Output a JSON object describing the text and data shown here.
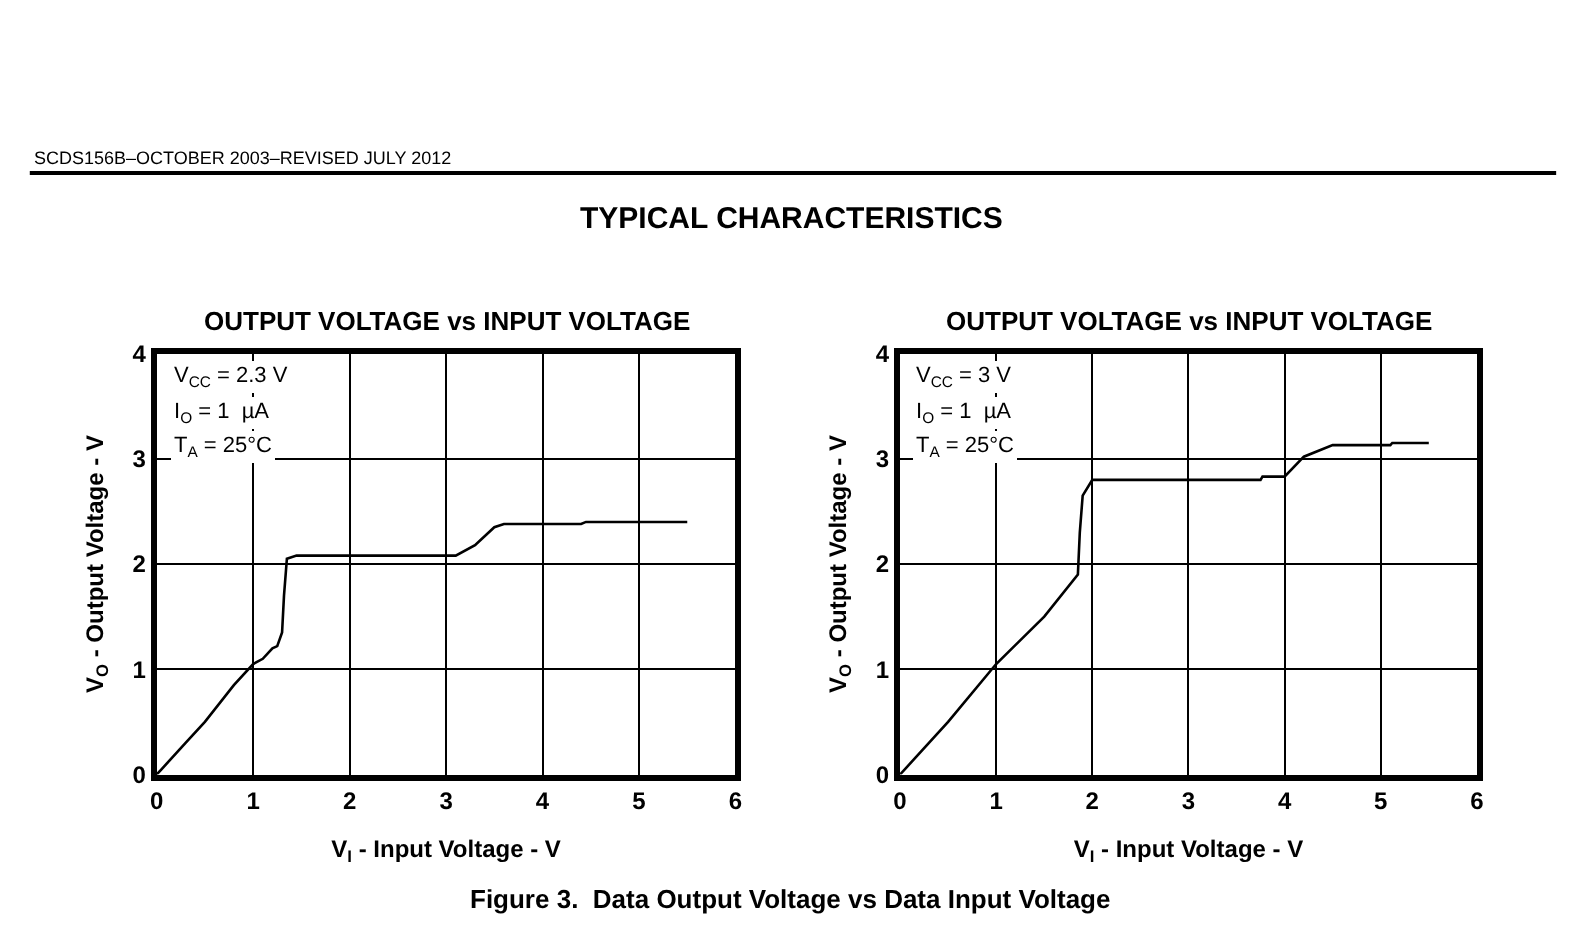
{
  "chart_data": [
    {
      "type": "line",
      "title": "OUTPUT VOLTAGE vs INPUT VOLTAGE",
      "xlabel": "V$_{I}$ - Input Voltage - V",
      "ylabel": "V$_{O}$ - Output Voltage - V",
      "x": [
        0,
        0.05,
        0.3,
        0.5,
        0.8,
        1.0,
        1.1,
        1.2,
        1.25,
        1.3,
        1.32,
        1.35,
        1.45,
        3.1,
        3.3,
        3.5,
        3.6,
        4.4,
        4.45,
        5.5
      ],
      "values": [
        0,
        0.05,
        0.3,
        0.5,
        0.85,
        1.05,
        1.1,
        1.2,
        1.22,
        1.35,
        1.7,
        2.05,
        2.08,
        2.08,
        2.18,
        2.35,
        2.38,
        2.38,
        2.4,
        2.4
      ],
      "color": "#000000",
      "xlim": [
        0,
        6
      ],
      "ylim": [
        0,
        4
      ],
      "xticks": [
        0,
        1,
        2,
        3,
        4,
        5,
        6
      ],
      "yticks": [
        0,
        1,
        2,
        3,
        4
      ],
      "grid": true,
      "annotations": [
        "V$_{CC}$ = 2.3 V",
        "I$_{O}$ = 1  µA",
        "T$_{A}$ = 25°C",
        "SCDS156B–OCTOBER 2003–REVISED JULY 2012",
        "TYPICAL CHARACTERISTICS",
        "Figure 3.  Data Output Voltage vs Data Input Voltage"
      ]
    },
    {
      "type": "line",
      "title": "OUTPUT VOLTAGE vs INPUT VOLTAGE",
      "xlabel": "V$_{I}$ - Input Voltage - V",
      "ylabel": "V$_{O}$ - Output Voltage - V",
      "x": [
        0,
        0.5,
        1.0,
        1.5,
        1.85,
        1.87,
        1.9,
        2.0,
        3.75,
        3.77,
        4.0,
        4.2,
        4.5,
        5.1,
        5.12,
        5.5
      ],
      "values": [
        0,
        0.5,
        1.05,
        1.5,
        1.9,
        2.3,
        2.65,
        2.8,
        2.8,
        2.83,
        2.83,
        3.02,
        3.13,
        3.13,
        3.15,
        3.15
      ],
      "color": "#000000",
      "xlim": [
        0,
        6
      ],
      "ylim": [
        0,
        4
      ],
      "xticks": [
        0,
        1,
        2,
        3,
        4,
        5,
        6
      ],
      "yticks": [
        0,
        1,
        2,
        3,
        4
      ],
      "grid": true,
      "annotations": [
        "V$_{CC}$ = 3 V",
        "I$_{O}$ = 1  µA",
        "T$_{A}$ = 25°C"
      ]
    }
  ]
}
